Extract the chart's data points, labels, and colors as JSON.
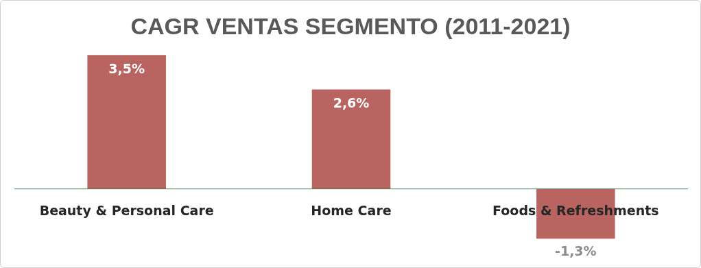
{
  "chart_data": {
    "type": "bar",
    "title": "CAGR VENTAS SEGMENTO (2011-2021)",
    "categories": [
      "Beauty & Personal Care",
      "Home Care",
      "Foods & Refreshments"
    ],
    "values": [
      3.5,
      2.6,
      -1.3
    ],
    "color": "#b96461",
    "value_labels": [
      "3,5%",
      "2,6%",
      "-1,3%"
    ],
    "legend": false
  }
}
